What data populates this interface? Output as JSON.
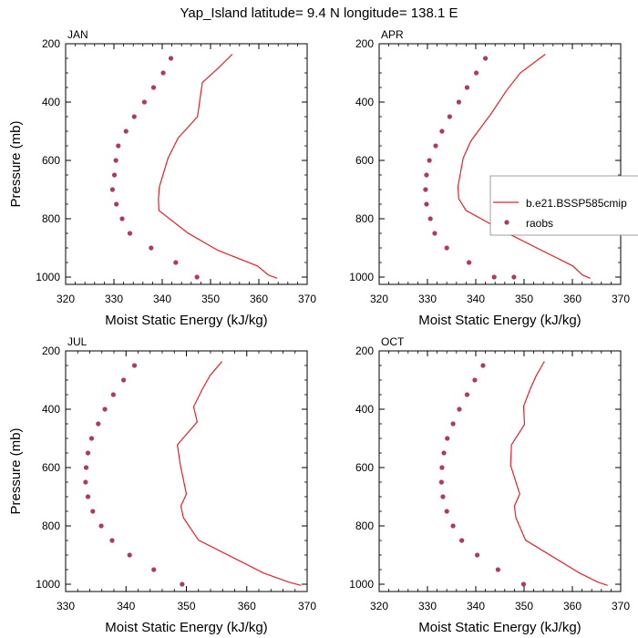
{
  "title": "Yap_Island  latitude= 9.4 N longitude= 138.1 E",
  "colors": {
    "model": "#e8202a",
    "obs": "#b03a5a"
  },
  "legend": {
    "series": [
      "b.e21.BSSP585cmip",
      "raobs"
    ]
  },
  "chart_data": [
    {
      "type": "line",
      "panel_label": "JAN",
      "xlabel": "Moist Static Energy (kJ/kg)",
      "ylabel": "Pressure (mb)",
      "xlim": [
        320,
        370
      ],
      "ylim": [
        200,
        1025
      ],
      "y_reversed": true,
      "xticks": [
        320,
        330,
        340,
        350,
        360,
        370
      ],
      "yticks": [
        200,
        400,
        600,
        800,
        1000
      ],
      "series": [
        {
          "name": "b.e21.BSSP585cmip",
          "style": "line",
          "x": [
            354.5,
            351.5,
            348.3,
            347.3,
            343.3,
            341.2,
            339.4,
            339.2,
            339.3,
            345.3,
            351.5,
            359.7,
            362.0,
            363.8
          ],
          "y": [
            236,
            285,
            333,
            450,
            523,
            592,
            691,
            732,
            772,
            849,
            908,
            962,
            993,
            1004
          ]
        },
        {
          "name": "raobs",
          "style": "marker",
          "x": [
            341.8,
            340.2,
            338.2,
            336.3,
            334.2,
            332.5,
            330.9,
            330.4,
            330.1,
            329.7,
            330.5,
            331.7,
            333.3,
            337.7,
            342.8,
            347.2
          ],
          "y": [
            250,
            300,
            350,
            400,
            450,
            500,
            550,
            600,
            650,
            700,
            750,
            800,
            850,
            900,
            950,
            1000
          ]
        }
      ]
    },
    {
      "type": "line",
      "panel_label": "APR",
      "xlabel": "Moist Static Energy (kJ/kg)",
      "ylabel": "",
      "xlim": [
        320,
        370
      ],
      "ylim": [
        200,
        1025
      ],
      "y_reversed": true,
      "xticks": [
        320,
        330,
        340,
        350,
        360,
        370
      ],
      "yticks": [
        200,
        400,
        600,
        800,
        1000
      ],
      "series": [
        {
          "name": "b.e21.BSSP585cmip",
          "style": "line",
          "x": [
            354.4,
            349.2,
            346.3,
            343.2,
            339.0,
            337.4,
            336.3,
            336.5,
            338.0,
            346.5,
            353.6,
            360.1,
            362.1,
            363.7
          ],
          "y": [
            236,
            300,
            362,
            439,
            533,
            592,
            691,
            732,
            772,
            849,
            908,
            962,
            993,
            1004
          ]
        },
        {
          "name": "raobs",
          "style": "marker",
          "x": [
            342.0,
            340.1,
            338.2,
            336.5,
            334.6,
            333.0,
            331.7,
            330.4,
            329.8,
            329.6,
            329.8,
            330.6,
            331.5,
            334.0,
            338.6,
            343.8,
            347.9
          ],
          "y": [
            250,
            300,
            350,
            400,
            450,
            500,
            550,
            600,
            650,
            700,
            750,
            800,
            850,
            900,
            950,
            1000,
            1000
          ]
        }
      ]
    },
    {
      "type": "line",
      "panel_label": "JUL",
      "xlabel": "Moist Static Energy (kJ/kg)",
      "ylabel": "Pressure (mb)",
      "xlim": [
        330,
        370
      ],
      "ylim": [
        200,
        1025
      ],
      "y_reversed": true,
      "xticks": [
        330,
        340,
        350,
        360,
        370
      ],
      "yticks": [
        200,
        400,
        600,
        800,
        1000
      ],
      "series": [
        {
          "name": "b.e21.BSSP585cmip",
          "style": "line",
          "x": [
            355.9,
            353.9,
            352.6,
            351.2,
            351.8,
            348.5,
            349.0,
            350.0,
            349.1,
            349.5,
            352.0,
            362.8,
            367.0,
            369.0
          ],
          "y": [
            236,
            285,
            333,
            392,
            443,
            522,
            592,
            691,
            732,
            772,
            849,
            962,
            993,
            1004
          ]
        },
        {
          "name": "raobs",
          "style": "marker",
          "x": [
            341.4,
            339.6,
            337.9,
            336.5,
            335.4,
            334.3,
            333.7,
            333.4,
            333.3,
            333.7,
            334.5,
            335.9,
            337.7,
            340.6,
            344.6,
            349.3
          ],
          "y": [
            250,
            300,
            350,
            400,
            450,
            500,
            550,
            600,
            650,
            700,
            750,
            800,
            850,
            900,
            950,
            1000
          ]
        }
      ]
    },
    {
      "type": "line",
      "panel_label": "OCT",
      "xlabel": "Moist Static Energy (kJ/kg)",
      "ylabel": "",
      "xlim": [
        320,
        370
      ],
      "ylim": [
        200,
        1025
      ],
      "y_reversed": true,
      "xticks": [
        320,
        330,
        340,
        350,
        360,
        370
      ],
      "yticks": [
        200,
        400,
        600,
        800,
        1000
      ],
      "series": [
        {
          "name": "b.e21.BSSP585cmip",
          "style": "line",
          "x": [
            354.2,
            352.5,
            351.2,
            349.9,
            350.1,
            347.4,
            347.2,
            349.1,
            348.0,
            348.3,
            350.3,
            361.5,
            365.3,
            367.3
          ],
          "y": [
            236,
            285,
            333,
            390,
            452,
            522,
            592,
            691,
            732,
            772,
            849,
            962,
            993,
            1004
          ]
        },
        {
          "name": "raobs",
          "style": "marker",
          "x": [
            341.5,
            339.8,
            338.2,
            336.6,
            335.3,
            334.1,
            333.4,
            333.0,
            332.9,
            333.2,
            334.0,
            335.3,
            337.1,
            340.3,
            344.6,
            349.9
          ],
          "y": [
            250,
            300,
            350,
            400,
            450,
            500,
            550,
            600,
            650,
            700,
            750,
            800,
            850,
            900,
            950,
            1000
          ]
        }
      ]
    }
  ]
}
